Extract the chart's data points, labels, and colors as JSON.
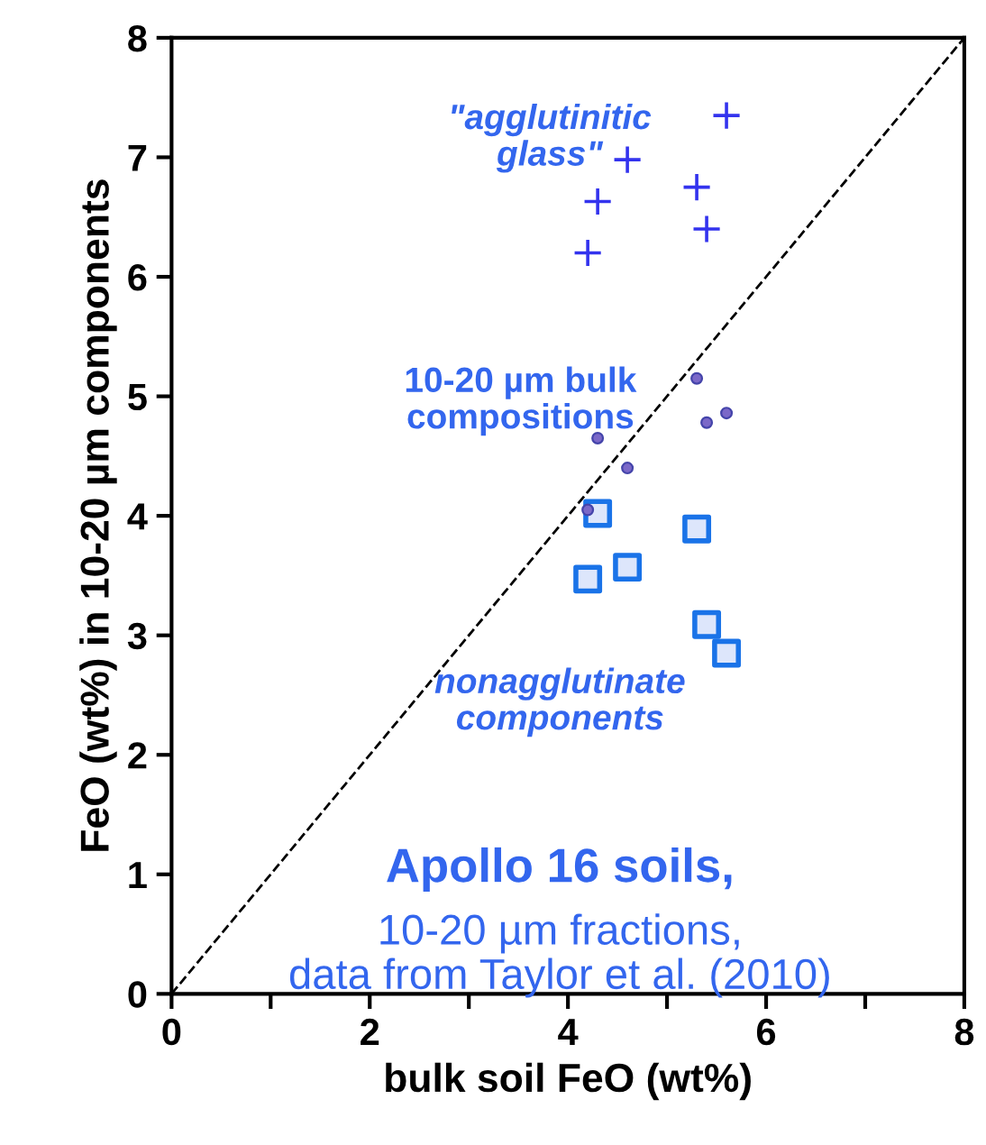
{
  "chart_data": {
    "type": "scatter",
    "xlabel": "bulk soil FeO (wt%)",
    "ylabel": "FeO (wt%) in 10-20 µm components",
    "x": [
      4.2,
      4.3,
      4.6,
      5.3,
      5.4,
      5.6
    ],
    "series": [
      {
        "color": "#3333ee",
        "marker": "cross",
        "values": [
          6.2,
          6.63,
          6.98,
          6.75,
          6.4,
          7.35
        ]
      },
      {
        "color": "#7b68c8",
        "marker": "circle",
        "values": [
          4.05,
          4.65,
          4.4,
          5.15,
          4.78,
          4.86
        ]
      },
      {
        "color": "#1a73e8",
        "marker": "square",
        "values": [
          3.47,
          4.02,
          3.57,
          3.89,
          3.09,
          2.85
        ]
      },
      {
        "type": "line",
        "color": "#000000",
        "line_style": "dashed",
        "marker": "none",
        "x": [
          0,
          8
        ],
        "values": [
          0,
          8
        ]
      }
    ],
    "annotations": [
      "\"agglutinitic glass\"",
      "10-20 µm bulk compositions",
      "nonagglutinate components",
      "Apollo 16 soils,",
      "10-20 µm fractions, data from Taylor et al. (2010)"
    ],
    "xlim": [
      0,
      8
    ],
    "ylim": [
      0,
      8
    ],
    "xticks": [
      0,
      {
        "value": 1,
        "label": null
      },
      2,
      {
        "value": 3,
        "label": null
      },
      4,
      {
        "value": 5,
        "label": null
      },
      6,
      {
        "value": 7,
        "label": null
      },
      8
    ],
    "yticks": [
      0,
      1,
      2,
      3,
      4,
      5,
      6,
      7,
      8
    ],
    "grid": false,
    "legend": false
  }
}
